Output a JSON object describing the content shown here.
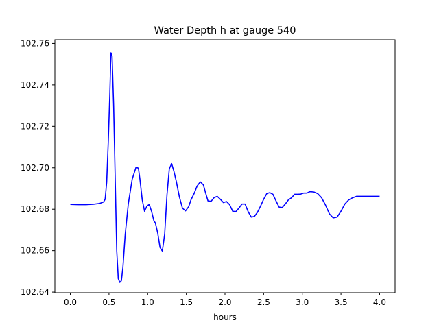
{
  "chart_data": {
    "type": "line",
    "title": "Water Depth h at gauge 540",
    "xlabel": "hours",
    "ylabel": "",
    "xlim": [
      -0.2,
      4.2
    ],
    "ylim": [
      102.6397,
      102.7618
    ],
    "xticks": [
      0.0,
      0.5,
      1.0,
      1.5,
      2.0,
      2.5,
      3.0,
      3.5,
      4.0
    ],
    "xtick_labels": [
      "0.0",
      "0.5",
      "1.0",
      "1.5",
      "2.0",
      "2.5",
      "3.0",
      "3.5",
      "4.0"
    ],
    "yticks": [
      102.64,
      102.66,
      102.68,
      102.7,
      102.72,
      102.74,
      102.76
    ],
    "ytick_labels": [
      "102.64",
      "102.66",
      "102.68",
      "102.70",
      "102.72",
      "102.74",
      "102.76"
    ],
    "grid": false,
    "series": [
      {
        "color": "#0000ff",
        "x": [
          0.0,
          0.1,
          0.2,
          0.3,
          0.38,
          0.43,
          0.45,
          0.47,
          0.49,
          0.51,
          0.525,
          0.54,
          0.56,
          0.58,
          0.6,
          0.62,
          0.64,
          0.66,
          0.68,
          0.71,
          0.75,
          0.8,
          0.85,
          0.88,
          0.9,
          0.93,
          0.96,
          0.99,
          1.02,
          1.05,
          1.08,
          1.1,
          1.13,
          1.16,
          1.19,
          1.22,
          1.25,
          1.28,
          1.31,
          1.34,
          1.37,
          1.41,
          1.45,
          1.49,
          1.53,
          1.56,
          1.6,
          1.64,
          1.68,
          1.72,
          1.75,
          1.78,
          1.82,
          1.86,
          1.9,
          1.94,
          1.98,
          2.02,
          2.06,
          2.1,
          2.14,
          2.18,
          2.22,
          2.26,
          2.3,
          2.34,
          2.38,
          2.42,
          2.46,
          2.5,
          2.54,
          2.58,
          2.62,
          2.66,
          2.7,
          2.74,
          2.78,
          2.82,
          2.86,
          2.9,
          2.94,
          2.98,
          3.02,
          3.06,
          3.1,
          3.15,
          3.2,
          3.25,
          3.3,
          3.35,
          3.4,
          3.45,
          3.5,
          3.55,
          3.6,
          3.65,
          3.7,
          3.75,
          3.8,
          3.85,
          3.9,
          3.95,
          4.0
        ],
        "y": [
          102.6823,
          102.6822,
          102.6822,
          102.6824,
          102.6828,
          102.6835,
          102.6848,
          102.693,
          102.712,
          102.735,
          102.7555,
          102.754,
          102.73,
          102.695,
          102.66,
          102.6465,
          102.6447,
          102.6455,
          102.652,
          102.668,
          102.6827,
          102.6945,
          102.7003,
          102.6998,
          102.6945,
          102.6845,
          102.679,
          102.6815,
          102.6823,
          102.679,
          102.6745,
          102.6733,
          102.6685,
          102.6615,
          102.6598,
          102.668,
          102.687,
          102.6995,
          102.702,
          102.6982,
          102.6935,
          102.686,
          102.6805,
          102.6792,
          102.6812,
          102.6845,
          102.6875,
          102.6912,
          102.6932,
          102.6918,
          102.6878,
          102.684,
          102.6838,
          102.6856,
          102.6862,
          102.6848,
          102.6832,
          102.6837,
          102.6822,
          102.679,
          102.6788,
          102.6805,
          102.6825,
          102.6825,
          102.6788,
          102.6762,
          102.6765,
          102.6785,
          102.6815,
          102.6848,
          102.6875,
          102.688,
          102.6872,
          102.684,
          102.681,
          102.6808,
          102.6825,
          102.6845,
          102.6855,
          102.6872,
          102.6872,
          102.6873,
          102.6878,
          102.6878,
          102.6885,
          102.6883,
          102.6875,
          102.6855,
          102.682,
          102.6778,
          102.6758,
          102.6762,
          102.679,
          102.6825,
          102.6845,
          102.6855,
          102.6862,
          102.6862,
          102.6862,
          102.6862,
          102.6862,
          102.6862,
          102.6862
        ]
      }
    ]
  }
}
